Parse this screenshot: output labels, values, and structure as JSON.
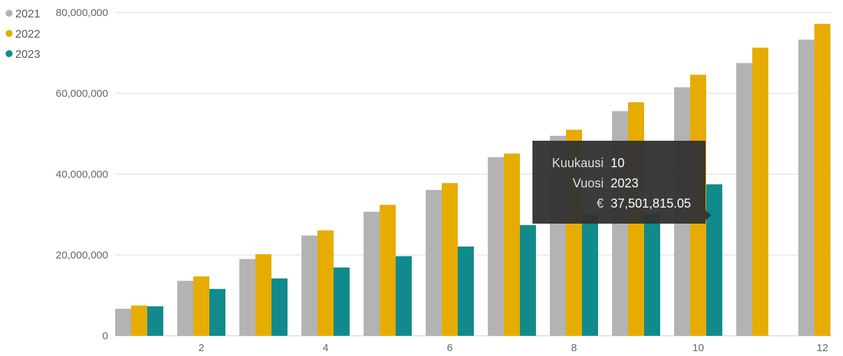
{
  "chart_data": {
    "type": "bar",
    "categories": [
      "1",
      "2",
      "3",
      "4",
      "5",
      "6",
      "7",
      "8",
      "9",
      "10",
      "11",
      "12"
    ],
    "x_tick_labels": [
      "2",
      "4",
      "6",
      "8",
      "10",
      "12"
    ],
    "series": [
      {
        "name": "2021",
        "color": "#b3b3b3",
        "values": [
          6700000,
          13600000,
          19000000,
          24800000,
          30700000,
          36100000,
          44200000,
          49500000,
          55600000,
          61500000,
          67500000,
          73300000
        ]
      },
      {
        "name": "2022",
        "color": "#e6ac00",
        "values": [
          7500000,
          14700000,
          20200000,
          26100000,
          32400000,
          37800000,
          45100000,
          51000000,
          57800000,
          64600000,
          71300000,
          77200000
        ]
      },
      {
        "name": "2023",
        "color": "#118a8c",
        "values": [
          7300000,
          11600000,
          14200000,
          16900000,
          19700000,
          22100000,
          27400000,
          30000000,
          30000000,
          37501815.05,
          null,
          null
        ]
      }
    ],
    "ylim": [
      0,
      80000000
    ],
    "y_ticks": [
      0,
      20000000,
      40000000,
      60000000,
      80000000
    ],
    "y_tick_labels": [
      "0",
      "20,000,000",
      "40,000,000",
      "60,000,000",
      "80,000,000"
    ],
    "grid": true,
    "legend": "top-left",
    "title": "",
    "xlabel": "",
    "ylabel": ""
  },
  "tooltip": {
    "rows": [
      {
        "label": "Kuukausi",
        "value": "10"
      },
      {
        "label": "Vuosi",
        "value": "2023"
      },
      {
        "label": "€",
        "value": "37,501,815.05"
      }
    ]
  }
}
